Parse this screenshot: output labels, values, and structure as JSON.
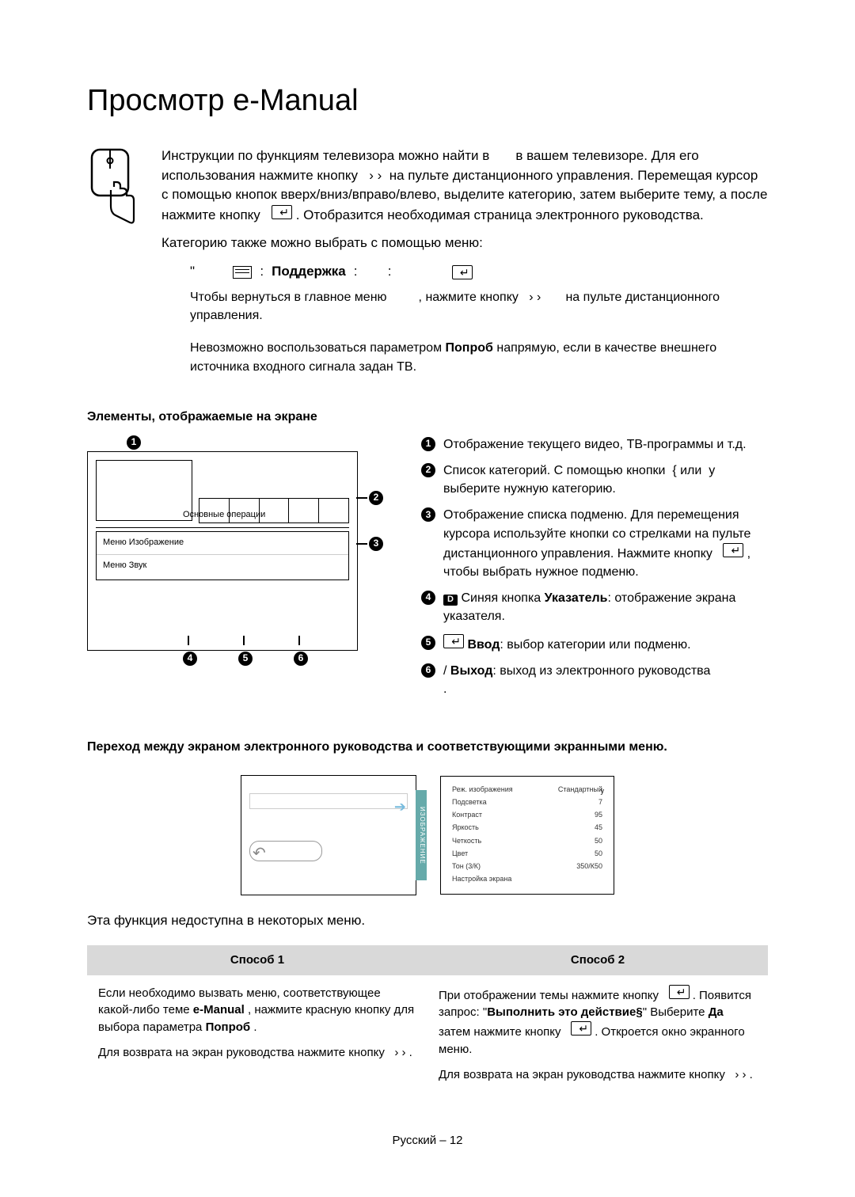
{
  "title": "Просмотр e-Manual",
  "intro": {
    "p1a": "Инструкции по функциям телевизора можно найти в",
    "p1b": "в вашем телевизоре. Для его использования нажмите кнопку",
    "p1c": "на пульте дистанционного управления. Перемещая курсор с помощью кнопок вверх/вниз/вправо/влево, выделите категорию, затем выберите тему, а после нажмите кнопку",
    "p1d": ". Отобразится необходимая страница электронного руководства.",
    "p2": "Категорию также можно выбрать с помощью меню:"
  },
  "menu_path": {
    "quote": "\"",
    "support": "Поддержка",
    "colon": ":",
    "colon2": ":"
  },
  "subnotes": {
    "n1a": "Чтобы вернуться в главное меню",
    "n1b": ", нажмите кнопку",
    "n1c": "на пульте дистанционного управления.",
    "n2a": "Невозможно воспользоваться параметром",
    "n2b": "Попроб",
    "n2c": "напрямую, если в качестве внешнего источника входного сигнала задан ТВ."
  },
  "section1_heading": "Элементы, отображаемые на экране",
  "screen_labels": {
    "basic_ops": "Основные операции",
    "menu_image": "Меню Изображение",
    "menu_sound": "Меню Звук"
  },
  "legend": {
    "i1": "Отображение текущего видео, ТВ-программы и т.д.",
    "i2a": "Список категорий. С помощью кнопки",
    "i2b": "или",
    "i2c": "выберите нужную категорию.",
    "i3a": "Отображение списка подменю. Для перемещения курсора используйте кнопки со стрелками на пульте дистанционного управления. Нажмите кнопку",
    "i3b": ", чтобы выбрать нужное подменю.",
    "i4a": "Синяя кнопка",
    "i4b": "Указатель",
    "i4c": ": отображение экрана указателя.",
    "i5a": "Ввод",
    "i5b": ": выбор категории или подменю.",
    "i6a": "/",
    "i6b": "Выход",
    "i6c": ": выход из электронного руководства"
  },
  "section2_heading": "Переход между экраном электронного руководства и соответствующими экранными меню.",
  "osd": {
    "tab_label": "ИЗОБРАЖЕНИЕ",
    "rows": [
      [
        "Реж. изображения",
        "Стандартный"
      ],
      [
        "Подсветка",
        "7"
      ],
      [
        "Контраст",
        "95"
      ],
      [
        "Яркость",
        "45"
      ],
      [
        "Четкость",
        "50"
      ],
      [
        "Цвет",
        "50"
      ],
      [
        "Тон (3/К)",
        "350/К50"
      ],
      [
        "Настройка экрана",
        ""
      ]
    ]
  },
  "unavailable_note": "Эта функция недоступна в некоторых меню.",
  "methods": {
    "h1": "Способ 1",
    "h2": "Способ 2",
    "m1_p1a": "Если необходимо вызвать меню, соответствующее какой-либо теме",
    "m1_p1b": "e-Manual",
    "m1_p1c": ", нажмите красную кнопку для выбора параметра",
    "m1_p1d": "Попроб",
    "m1_p1e": ".",
    "m1_p2": "Для возврата на экран руководства нажмите кнопку",
    "m2_p1a": "При отображении темы нажмите кнопку",
    "m2_p1b": ". Появится запрос: \"",
    "m2_p1c": "Выполнить это действие§",
    "m2_p1d": "\" Выберите",
    "m2_p1e": "Да",
    "m2_p1f": "затем нажмите кнопку",
    "m2_p1g": ". Откроется окно экранного меню.",
    "m2_p2": "Для возврата на экран руководства нажмите кнопку"
  },
  "footer": "Русский – 12",
  "chevrons": "› ›",
  "chevron3": "› › .",
  "left_brace": "{",
  "letter_u": "у",
  "letter_u2": "у",
  "dot": "."
}
